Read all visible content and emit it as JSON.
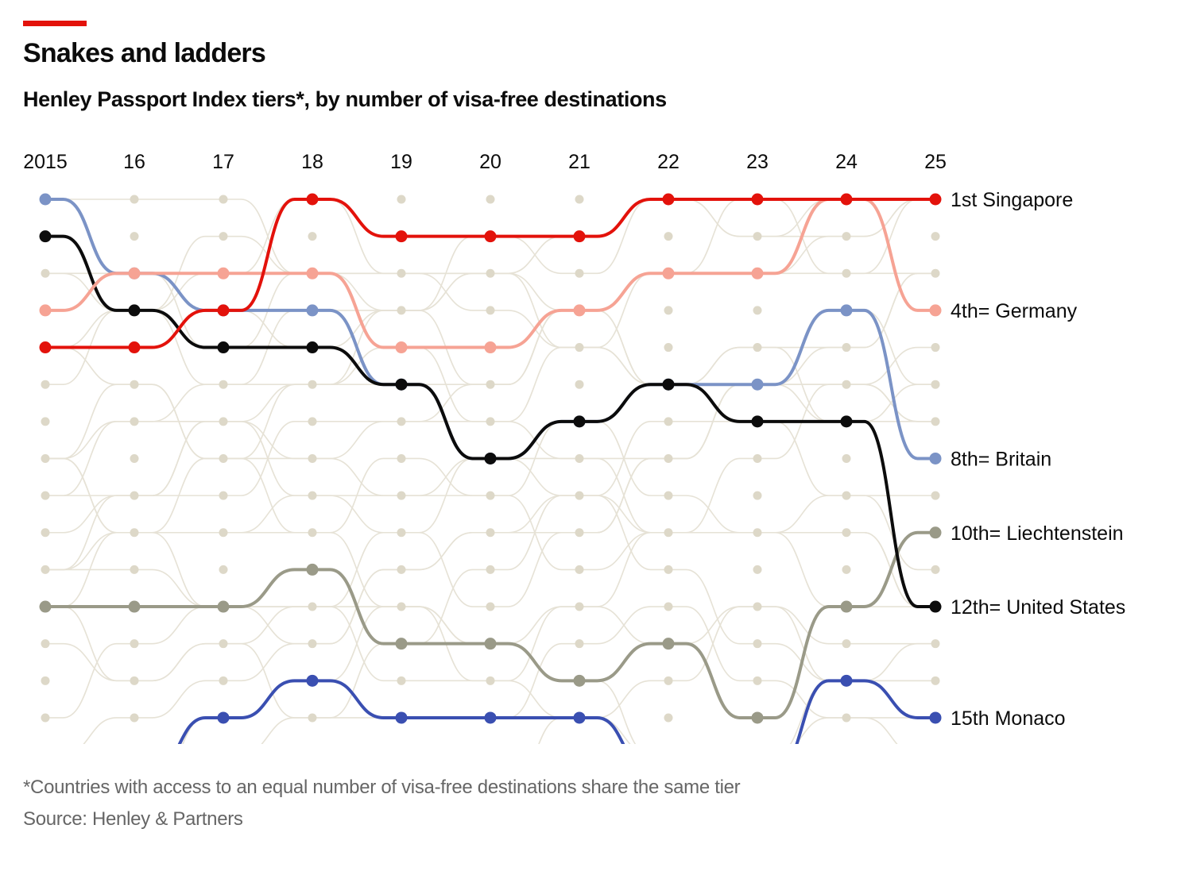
{
  "title": "Snakes and ladders",
  "subtitle": "Henley Passport Index tiers*, by number of visa-free destinations",
  "footnote": "*Countries with access to an equal number of visa-free destinations share the same tier",
  "source": "Source: Henley & Partners",
  "accent_color": "#e3120b",
  "chart_data": {
    "type": "line",
    "subtype": "bump",
    "title": "Snakes and ladders",
    "x_tick_labels": [
      "2015",
      "16",
      "17",
      "18",
      "19",
      "20",
      "21",
      "22",
      "23",
      "24",
      "25"
    ],
    "y_range": [
      1,
      15
    ],
    "y_inverted": true,
    "grid": false,
    "background_color": "#ddd8c8",
    "series": [
      {
        "name": "Liechtenstein",
        "label": "10th= Liechtenstein",
        "color": "#9a9a88",
        "values": [
          12,
          12,
          12,
          11,
          13,
          13,
          14,
          13,
          15,
          12,
          10
        ]
      },
      {
        "name": "Monaco",
        "label": "15th Monaco",
        "color": "#3a4fb1",
        "values": [
          null,
          null,
          15,
          14,
          15,
          15,
          15,
          null,
          null,
          14,
          15
        ]
      },
      {
        "name": "Britain",
        "label": "8th= Britain",
        "color": "#7b93c6",
        "values": [
          1,
          3,
          4,
          4,
          6,
          8,
          7,
          6,
          6,
          4,
          8
        ]
      },
      {
        "name": "United States",
        "label": "12th= United States",
        "color": "#0c0c0c",
        "values": [
          2,
          4,
          5,
          5,
          6,
          8,
          7,
          6,
          7,
          7,
          12
        ]
      },
      {
        "name": "Germany",
        "label": "4th= Germany",
        "color": "#f6a394",
        "values": [
          4,
          3,
          3,
          3,
          5,
          5,
          4,
          3,
          3,
          1,
          4
        ]
      },
      {
        "name": "Singapore",
        "label": "1st Singapore",
        "color": "#e3120b",
        "values": [
          5,
          5,
          4,
          1,
          2,
          2,
          2,
          1,
          1,
          1,
          1
        ]
      }
    ]
  }
}
